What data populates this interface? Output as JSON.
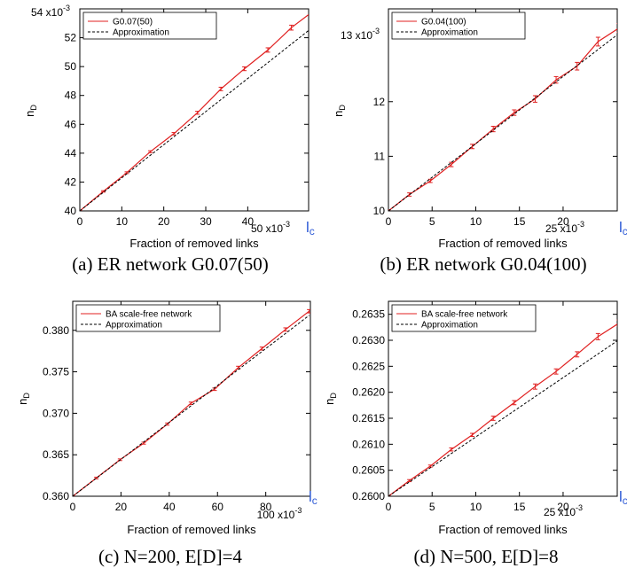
{
  "colors": {
    "series": "#e02020",
    "approx": "#000000",
    "lc": "#2f5bd6"
  },
  "charts": [
    {
      "caption": "(a) ER network G0.07(50)",
      "corner_label": "lc",
      "x_exponent_label": "50 x10-3",
      "y_exponent_label": "54 x10-3",
      "chart_data": {
        "type": "line",
        "title": "",
        "xlabel": "Fraction of removed links",
        "ylabel": "nD",
        "xlim": [
          0,
          0.0545
        ],
        "ylim": [
          0.04,
          0.054
        ],
        "xticks": [
          "0",
          "10",
          "20",
          "30",
          "40"
        ],
        "xtick_values": [
          0,
          0.01,
          0.02,
          0.03,
          0.04
        ],
        "yticks": [
          "40",
          "42",
          "44",
          "46",
          "48",
          "50",
          "52"
        ],
        "ytick_values": [
          0.04,
          0.042,
          0.044,
          0.046,
          0.048,
          0.05,
          0.052
        ],
        "legend_position": "top-left",
        "series": [
          {
            "name": "G0.07(50)",
            "style": "solid-errorbars",
            "x": [
              0,
              0.0056,
              0.0112,
              0.0168,
              0.0224,
              0.028,
              0.0336,
              0.0392,
              0.0448,
              0.0504,
              0.0545
            ],
            "y": [
              0.04,
              0.04135,
              0.04265,
              0.0441,
              0.04535,
              0.0468,
              0.04845,
              0.04985,
              0.05115,
              0.0527,
              0.0536
            ],
            "err": [
              5e-05,
              5e-05,
              6e-05,
              7e-05,
              8e-05,
              0.0001,
              0.00012,
              0.00013,
              0.00015,
              0.00017,
              0
            ]
          },
          {
            "name": "Approximation",
            "style": "dashed",
            "x": [
              0,
              0.0545
            ],
            "y": [
              0.04,
              0.0525
            ]
          }
        ]
      }
    },
    {
      "caption": "(b) ER network G0.04(100)",
      "corner_label": "lc",
      "x_exponent_label": "25 x10-3",
      "y_exponent_label": "13 x10-3",
      "chart_data": {
        "type": "line",
        "title": "",
        "xlabel": "Fraction of removed links",
        "ylabel": "nD",
        "xlim": [
          0,
          0.0262
        ],
        "ylim": [
          0.01,
          0.0137
        ],
        "xticks": [
          "0",
          "5",
          "10",
          "15",
          "20"
        ],
        "xtick_values": [
          0,
          0.005,
          0.01,
          0.015,
          0.02
        ],
        "yticks": [
          "10",
          "11",
          "12"
        ],
        "ytick_values": [
          0.01,
          0.011,
          0.012
        ],
        "legend_position": "top-left",
        "series": [
          {
            "name": "G0.04(100)",
            "style": "solid-errorbars",
            "x": [
              0,
              0.0024,
              0.0048,
              0.0072,
              0.0096,
              0.012,
              0.0144,
              0.0168,
              0.0192,
              0.0216,
              0.024,
              0.0264
            ],
            "y": [
              0.01,
              0.0103,
              0.01055,
              0.01085,
              0.01118,
              0.0115,
              0.0118,
              0.01205,
              0.0124,
              0.01265,
              0.0131,
              0.01335
            ],
            "err": [
              2e-05,
              3e-05,
              3e-05,
              4e-05,
              4e-05,
              5e-05,
              5e-05,
              6e-05,
              6e-05,
              7e-05,
              8e-05,
              8e-05
            ]
          },
          {
            "name": "Approximation",
            "style": "dashed",
            "x": [
              0,
              0.0264
            ],
            "y": [
              0.01,
              0.01325
            ]
          }
        ]
      }
    },
    {
      "caption": "(c) N=200, E[D]=4",
      "corner_label": "lc",
      "x_exponent_label": "100 x10-3",
      "y_exponent_label": "",
      "chart_data": {
        "type": "line",
        "title": "",
        "xlabel": "Fraction of removed links",
        "ylabel": "nD",
        "xlim": [
          0,
          0.0985
        ],
        "ylim": [
          0.36,
          0.3835
        ],
        "xticks": [
          "0",
          "20",
          "40",
          "60",
          "80"
        ],
        "xtick_values": [
          0,
          0.02,
          0.04,
          0.06,
          0.08
        ],
        "yticks": [
          "0.360",
          "0.365",
          "0.370",
          "0.375",
          "0.380"
        ],
        "ytick_values": [
          0.36,
          0.365,
          0.37,
          0.375,
          0.38
        ],
        "legend_position": "top-left",
        "series": [
          {
            "name": "BA scale-free network",
            "style": "solid-errorbars",
            "x": [
              0,
              0.0098,
              0.0196,
              0.0294,
              0.0392,
              0.049,
              0.0588,
              0.0686,
              0.0784,
              0.0882,
              0.098
            ],
            "y": [
              0.36,
              0.3622,
              0.3644,
              0.3664,
              0.3687,
              0.3712,
              0.3729,
              0.3755,
              0.3778,
              0.3801,
              0.3823
            ],
            "err": [
              5e-05,
              0.0001,
              0.0001,
              0.00012,
              0.00013,
              0.00015,
              0.00015,
              0.00017,
              0.00018,
              0.0002,
              0.0002
            ]
          },
          {
            "name": "Approximation",
            "style": "dashed",
            "x": [
              0,
              0.098
            ],
            "y": [
              0.36,
              0.3818
            ]
          }
        ]
      }
    },
    {
      "caption": "(d) N=500, E[D]=8",
      "corner_label": "lc",
      "x_exponent_label": "25 x10-3",
      "y_exponent_label": "",
      "chart_data": {
        "type": "line",
        "title": "",
        "xlabel": "Fraction of removed links",
        "ylabel": "nD",
        "xlim": [
          0,
          0.0262
        ],
        "ylim": [
          0.26,
          0.26375
        ],
        "xticks": [
          "0",
          "5",
          "10",
          "15",
          "20"
        ],
        "xtick_values": [
          0,
          0.005,
          0.01,
          0.015,
          0.02
        ],
        "yticks": [
          "0.2600",
          "0.2605",
          "0.2610",
          "0.2615",
          "0.2620",
          "0.2625",
          "0.2630",
          "0.2635"
        ],
        "ytick_values": [
          0.26,
          0.2605,
          0.261,
          0.2615,
          0.262,
          0.2625,
          0.263,
          0.2635
        ],
        "legend_position": "top-left",
        "series": [
          {
            "name": "BA scale-free network",
            "style": "solid-errorbars",
            "x": [
              0,
              0.0024,
              0.0048,
              0.0072,
              0.0096,
              0.012,
              0.0144,
              0.0168,
              0.0192,
              0.0216,
              0.024,
              0.0264,
              0.0285
            ],
            "y": [
              0.26,
              0.2603,
              0.26058,
              0.2609,
              0.26118,
              0.2615,
              0.2618,
              0.26211,
              0.2624,
              0.26273,
              0.26307,
              0.26333,
              0.26368
            ],
            "err": [
              1e-05,
              2e-05,
              2e-05,
              3e-05,
              3e-05,
              4e-05,
              4e-05,
              5e-05,
              5e-05,
              5e-05,
              6e-05,
              6e-05,
              0
            ]
          },
          {
            "name": "Approximation",
            "style": "dashed",
            "x": [
              0,
              0.0285
            ],
            "y": [
              0.26,
              0.26325
            ]
          }
        ]
      }
    }
  ]
}
